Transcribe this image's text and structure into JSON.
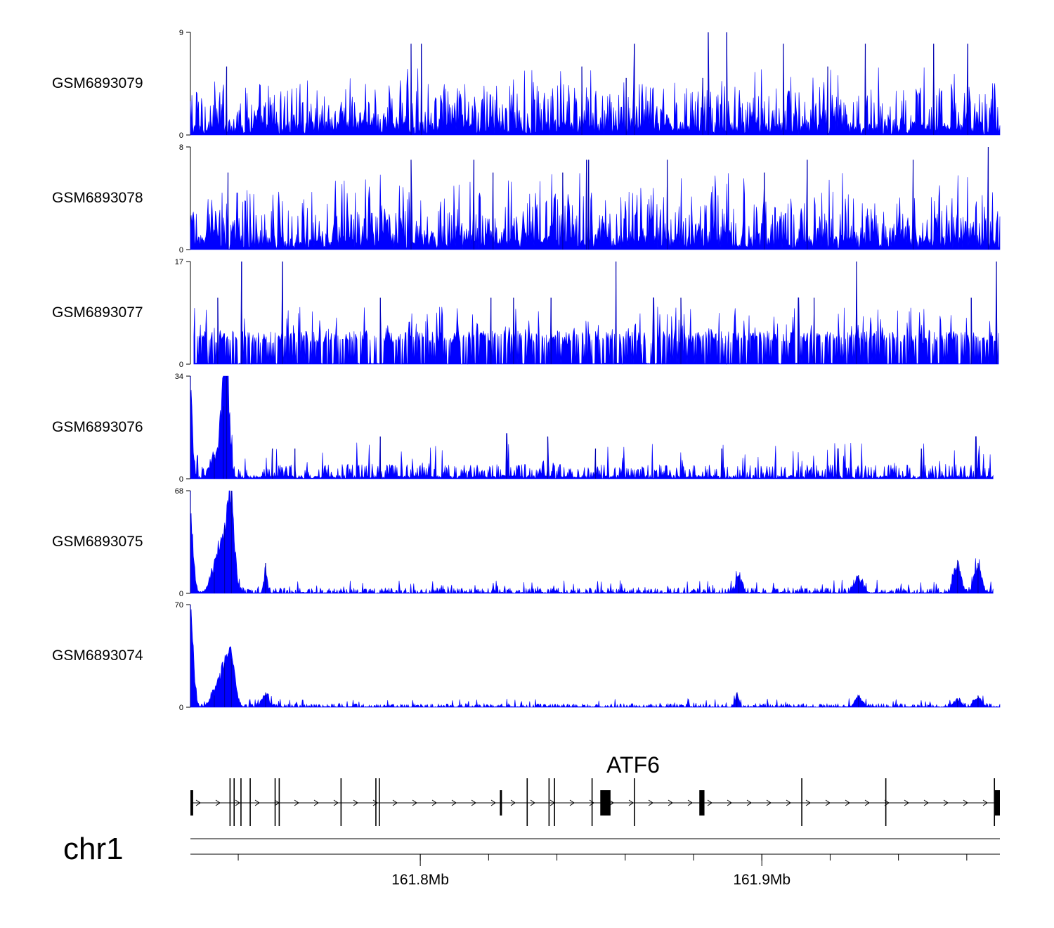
{
  "chart_data": {
    "type": "area",
    "title": "",
    "chromosome": "chr1",
    "x_range_mb": [
      161.7327,
      161.9697
    ],
    "color": "#0000ff",
    "tracks": [
      {
        "name": "GSM6893079",
        "ymax": 9,
        "ymin": 0,
        "profile": "uniform",
        "base": 1.2,
        "typical": 3,
        "spikes": [
          [
            161.7973,
            8
          ],
          [
            161.8003,
            8
          ],
          [
            161.8843,
            9
          ],
          [
            161.8897,
            9
          ],
          [
            161.9063,
            8
          ],
          [
            161.8473,
            6
          ],
          [
            161.8627,
            8
          ],
          [
            161.9503,
            8
          ],
          [
            161.9303,
            8
          ],
          [
            161.9193,
            6
          ],
          [
            161.7433,
            6
          ],
          [
            161.9603,
            8
          ],
          [
            161.8827,
            5
          ],
          [
            161.8603,
            5
          ]
        ]
      },
      {
        "name": "GSM6893078",
        "ymax": 8,
        "ymin": 0,
        "profile": "uniform",
        "base": 1.2,
        "typical": 3,
        "spikes": [
          [
            161.7973,
            7
          ],
          [
            161.8157,
            7
          ],
          [
            161.8487,
            7
          ],
          [
            161.8493,
            7
          ],
          [
            161.8723,
            7
          ],
          [
            161.8487,
            6
          ],
          [
            161.9443,
            7
          ],
          [
            161.9133,
            7
          ],
          [
            161.9663,
            8
          ],
          [
            161.8417,
            6
          ],
          [
            161.8213,
            6
          ],
          [
            161.9007,
            6
          ],
          [
            161.7437,
            6
          ]
        ]
      },
      {
        "name": "GSM6893077",
        "ymax": 17,
        "ymin": 0,
        "profile": "sparse",
        "start": 161.7337,
        "end": 161.9693,
        "typical": 5.5,
        "spikes": [
          [
            161.7477,
            17
          ],
          [
            161.7597,
            17
          ],
          [
            161.8573,
            17
          ],
          [
            161.9277,
            17
          ],
          [
            161.9687,
            17
          ],
          [
            161.7407,
            11
          ],
          [
            161.7477,
            12
          ],
          [
            161.8273,
            11
          ],
          [
            161.8207,
            11
          ],
          [
            161.8763,
            11
          ],
          [
            161.9153,
            11
          ],
          [
            161.9107,
            11
          ],
          [
            161.9613,
            11
          ],
          [
            161.7883,
            11
          ],
          [
            161.8383,
            11
          ],
          [
            161.8683,
            11
          ]
        ]
      },
      {
        "name": "GSM6893076",
        "ymax": 34,
        "ymin": 0,
        "profile": "enriched",
        "start": 161.7327,
        "end": 161.9677,
        "typical": 4,
        "peaks": [
          [
            161.7327,
            34,
            0.0008
          ],
          [
            161.7423,
            24,
            0.0015
          ],
          [
            161.7433,
            34,
            0.0012
          ],
          [
            161.7397,
            8,
            0.0015
          ]
        ],
        "spikes": [
          [
            161.7883,
            14
          ],
          [
            161.8253,
            15
          ],
          [
            161.8373,
            14
          ],
          [
            161.8513,
            10
          ],
          [
            161.9223,
            10
          ],
          [
            161.9627,
            14
          ],
          [
            161.9467,
            10
          ],
          [
            161.7567,
            10
          ],
          [
            161.7633,
            10
          ],
          [
            161.8883,
            10
          ]
        ]
      },
      {
        "name": "GSM6893075",
        "ymax": 68,
        "ymin": 0,
        "profile": "enriched",
        "start": 161.7327,
        "end": 161.9677,
        "typical": 3,
        "peaks": [
          [
            161.7327,
            68,
            0.0012
          ],
          [
            161.7427,
            45,
            0.0025
          ],
          [
            161.7447,
            68,
            0.0012
          ],
          [
            161.7397,
            14,
            0.002
          ],
          [
            161.7547,
            20,
            0.0006
          ],
          [
            161.9573,
            22,
            0.0015
          ],
          [
            161.9633,
            20,
            0.0015
          ],
          [
            161.9283,
            12,
            0.0015
          ],
          [
            161.8933,
            12,
            0.0012
          ]
        ],
        "spikes": []
      },
      {
        "name": "GSM6893074",
        "ymax": 70,
        "ymin": 0,
        "profile": "enriched",
        "start": 161.7327,
        "end": 161.9697,
        "typical": 2,
        "peaks": [
          [
            161.7327,
            70,
            0.0012
          ],
          [
            161.7427,
            30,
            0.0025
          ],
          [
            161.7447,
            33,
            0.0015
          ],
          [
            161.7397,
            8,
            0.002
          ],
          [
            161.7547,
            10,
            0.0015
          ],
          [
            161.8927,
            10,
            0.0008
          ],
          [
            161.9573,
            6,
            0.0015
          ],
          [
            161.9633,
            8,
            0.0015
          ],
          [
            161.9283,
            8,
            0.0015
          ]
        ],
        "spikes": []
      }
    ],
    "gene_track": {
      "gene_name": "ATF6",
      "strand": "+",
      "start_mb": 161.7327,
      "end_mb": 161.9697,
      "thick_exons": [
        [
          161.7327,
          161.7335
        ],
        [
          161.8233,
          161.8238
        ],
        [
          161.8527,
          161.8557
        ],
        [
          161.8817,
          161.8832
        ],
        [
          161.9681,
          161.9697
        ]
      ],
      "thin_marks": [
        161.7443,
        161.7455,
        161.7475,
        161.7502,
        161.7575,
        161.7587,
        161.7768,
        161.787,
        161.788,
        161.8313,
        161.8377,
        161.8393,
        161.8503,
        161.8627,
        161.9117,
        161.9363,
        161.9681
      ]
    },
    "x_axis": {
      "label_ticks": [
        {
          "mb": 161.8,
          "label": "161.8Mb"
        },
        {
          "mb": 161.9,
          "label": "161.9Mb"
        }
      ],
      "minor_ticks": [
        161.7467,
        161.8,
        161.82,
        161.84,
        161.86,
        161.88,
        161.9,
        161.92,
        161.94,
        161.96
      ]
    }
  }
}
